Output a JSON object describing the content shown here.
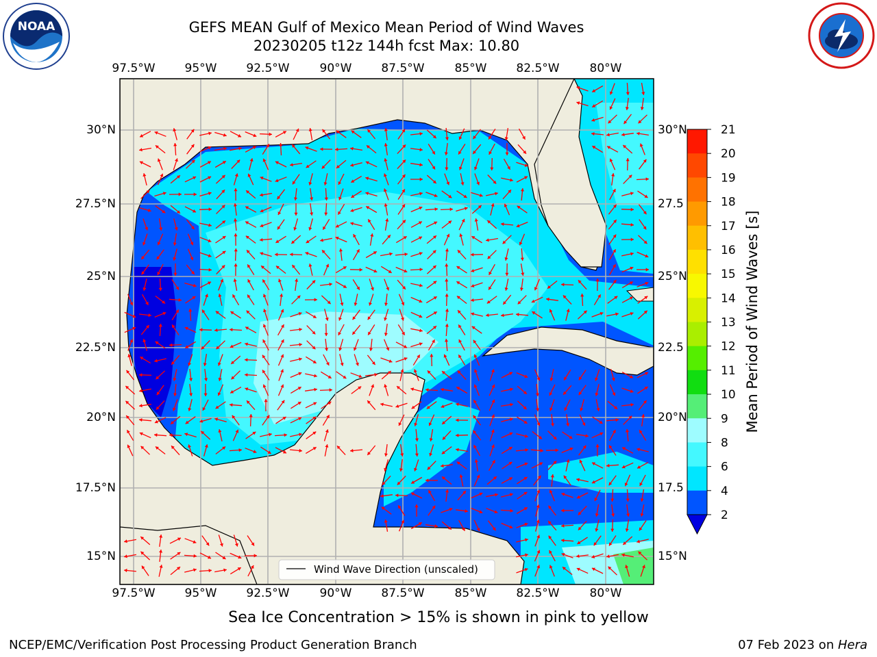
{
  "title": {
    "line1": "GEFS MEAN Gulf of Mexico Mean Period of Wind Waves",
    "line2": "20230205 t12z 144h fcst   Max: 10.80"
  },
  "logos": {
    "left": {
      "name": "noaa-logo",
      "text": "NOAA",
      "ring_text": "NATIONAL OCEANIC AND ATMOSPHERIC ADMINISTRATION · U.S. DEPARTMENT OF COMMERCE"
    },
    "right": {
      "name": "nws-logo",
      "ring_text": "NATIONAL WEATHER SERVICE"
    }
  },
  "map": {
    "lon_labels": [
      "97.5°W",
      "95°W",
      "92.5°W",
      "90°W",
      "87.5°W",
      "85°W",
      "82.5°W",
      "80°W"
    ],
    "lat_labels_left": [
      "30°N",
      "27.5°N",
      "25°N",
      "22.5°N",
      "20°N",
      "17.5°N",
      "15°N"
    ],
    "lat_labels_right": [
      "30°N",
      "27.5",
      "25°N",
      "22.5",
      "20°N",
      "17.5",
      "15°N"
    ],
    "legend": "Wind Wave Direction (unscaled)",
    "colors": {
      "land": "#efedde",
      "grid": "#b0b0b0",
      "arrow": "#ff0000"
    }
  },
  "colorbar": {
    "label": "Mean Period of Wind Waves [s]",
    "ticks": [
      "2",
      "4",
      "6",
      "8",
      "9",
      "10",
      "11",
      "12",
      "13",
      "14",
      "15",
      "16",
      "17",
      "18",
      "19",
      "20",
      "21"
    ],
    "colors": [
      "#0055ff",
      "#00e6ff",
      "#44f8ff",
      "#9efcff",
      "#55ee77",
      "#11dd11",
      "#55ee00",
      "#aaee00",
      "#d8f000",
      "#f8f800",
      "#ffe000",
      "#ffbf00",
      "#ff9a00",
      "#ff7200",
      "#ff4800",
      "#ff1800"
    ],
    "extend_color": "#0000e0"
  },
  "note": "Sea Ice Concentration > 15% is shown in pink to yellow",
  "footer": {
    "left": "NCEP/EMC/Verification Post Processing Product Generation Branch",
    "right_date": "07 Feb 2023 on ",
    "right_host": "Hera"
  }
}
